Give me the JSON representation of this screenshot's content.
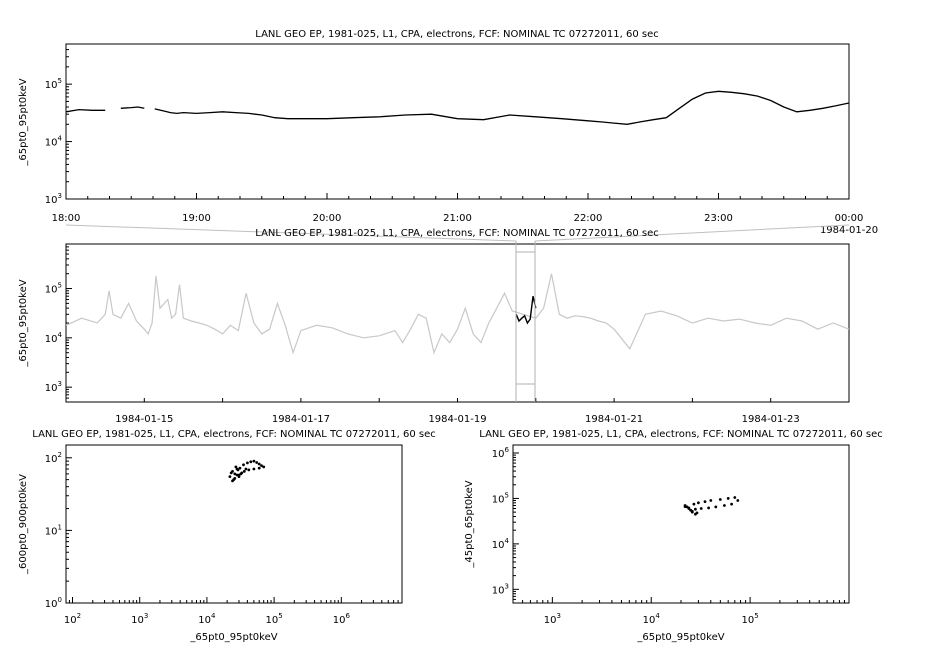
{
  "panels": {
    "top": {
      "title": "LANL GEO EP, 1981-025, L1, CPA, electrons, FCF: NOMINAL TC 07272011, 60 sec",
      "ylabel": "_65pt0_95pt0keV",
      "xticks": [
        "18:00",
        "19:00",
        "20:00",
        "21:00",
        "22:00",
        "23:00",
        "00:00"
      ],
      "xtick_extra": "1984-01-20",
      "yticks": [
        {
          "base": "10",
          "exp": "3"
        },
        {
          "base": "10",
          "exp": "4"
        },
        {
          "base": "10",
          "exp": "5"
        }
      ]
    },
    "middle": {
      "title": "LANL GEO EP, 1981-025, L1, CPA, electrons, FCF: NOMINAL TC 07272011, 60 sec",
      "ylabel": "_65pt0_95pt0keV",
      "xticks": [
        "1984-01-15",
        "1984-01-17",
        "1984-01-19",
        "1984-01-21",
        "1984-01-23"
      ],
      "yticks": [
        {
          "base": "10",
          "exp": "3"
        },
        {
          "base": "10",
          "exp": "4"
        },
        {
          "base": "10",
          "exp": "5"
        }
      ]
    },
    "bottom_left": {
      "title": "LANL GEO EP, 1981-025, L1, CPA, electrons, FCF: NOMINAL TC 07272011, 60 sec",
      "ylabel": "_600pt0_900pt0keV",
      "xlabel": "_65pt0_95pt0keV",
      "xticks": [
        {
          "base": "10",
          "exp": "2"
        },
        {
          "base": "10",
          "exp": "3"
        },
        {
          "base": "10",
          "exp": "4"
        },
        {
          "base": "10",
          "exp": "5"
        },
        {
          "base": "10",
          "exp": "6"
        }
      ],
      "yticks": [
        {
          "base": "10",
          "exp": "0"
        },
        {
          "base": "10",
          "exp": "1"
        },
        {
          "base": "10",
          "exp": "2"
        }
      ]
    },
    "bottom_right": {
      "title": "LANL GEO EP, 1981-025, L1, CPA, electrons, FCF: NOMINAL TC 07272011, 60 sec",
      "ylabel": "_45pt0_65pt0keV",
      "xlabel": "_65pt0_95pt0keV",
      "xticks": [
        {
          "base": "10",
          "exp": "3"
        },
        {
          "base": "10",
          "exp": "4"
        },
        {
          "base": "10",
          "exp": "5"
        }
      ],
      "yticks": [
        {
          "base": "10",
          "exp": "3"
        },
        {
          "base": "10",
          "exp": "4"
        },
        {
          "base": "10",
          "exp": "5"
        },
        {
          "base": "10",
          "exp": "6"
        }
      ]
    }
  },
  "chart_data": [
    {
      "type": "line",
      "panel": "top",
      "x_unit": "hours from 1984-01-19 18:00",
      "xlim": [
        0,
        6
      ],
      "ylim": [
        1000,
        500000
      ],
      "yscale": "log",
      "color": "#000000",
      "x": [
        0.0,
        0.1,
        0.2,
        0.3,
        0.35,
        0.42,
        0.5,
        0.55,
        0.6,
        0.65,
        0.68,
        0.75,
        0.8,
        0.85,
        0.9,
        1.0,
        1.1,
        1.2,
        1.3,
        1.4,
        1.5,
        1.6,
        1.7,
        1.8,
        1.9,
        2.0,
        2.2,
        2.4,
        2.6,
        2.8,
        3.0,
        3.2,
        3.4,
        3.6,
        3.8,
        4.0,
        4.1,
        4.2,
        4.3,
        4.4,
        4.5,
        4.6,
        4.7,
        4.8,
        4.9,
        5.0,
        5.1,
        5.2,
        5.3,
        5.4,
        5.5,
        5.6,
        5.7,
        5.8,
        5.9,
        6.0
      ],
      "y": [
        33000,
        36000,
        35000,
        35000,
        null,
        38000,
        39000,
        40000,
        38000,
        null,
        37000,
        34000,
        32000,
        31000,
        32000,
        31000,
        32000,
        33000,
        32000,
        31000,
        29000,
        26000,
        25000,
        25000,
        25000,
        25000,
        26000,
        27000,
        29000,
        30000,
        25000,
        24000,
        29000,
        27000,
        25000,
        23000,
        22000,
        21000,
        20000,
        22000,
        24000,
        26000,
        38000,
        55000,
        70000,
        75000,
        72000,
        68000,
        62000,
        52000,
        40000,
        33000,
        35000,
        38000,
        42000,
        47000
      ]
    },
    {
      "type": "line",
      "panel": "middle",
      "x_unit": "days from 1984-01-14 00:00",
      "xlim": [
        0,
        10
      ],
      "ylim": [
        500,
        800000
      ],
      "yscale": "log",
      "highlight": {
        "x_range": [
          5.75,
          6.0
        ],
        "color": "#000000",
        "y": [
          30000,
          22000,
          25000,
          28000,
          20000,
          24000,
          70000,
          40000
        ]
      },
      "color": "#c8c8c8",
      "x": [
        0.0,
        0.2,
        0.4,
        0.5,
        0.55,
        0.6,
        0.7,
        0.8,
        0.9,
        1.0,
        1.05,
        1.1,
        1.15,
        1.2,
        1.3,
        1.35,
        1.4,
        1.45,
        1.5,
        1.6,
        1.7,
        1.8,
        1.9,
        2.0,
        2.1,
        2.2,
        2.3,
        2.4,
        2.5,
        2.6,
        2.7,
        2.8,
        2.9,
        3.0,
        3.2,
        3.4,
        3.6,
        3.8,
        4.0,
        4.2,
        4.3,
        4.4,
        4.5,
        4.6,
        4.7,
        4.8,
        4.9,
        5.0,
        5.1,
        5.2,
        5.3,
        5.4,
        5.5,
        5.6,
        5.7,
        6.0,
        6.1,
        6.2,
        6.3,
        6.4,
        6.5,
        6.6,
        6.7,
        6.8,
        6.9,
        7.0,
        7.2,
        7.4,
        7.6,
        7.8,
        8.0,
        8.2,
        8.4,
        8.6,
        8.8,
        9.0,
        9.2,
        9.4,
        9.6,
        9.8,
        10.0
      ],
      "y": [
        18000,
        25000,
        20000,
        30000,
        90000,
        30000,
        25000,
        50000,
        22000,
        15000,
        12000,
        20000,
        180000,
        40000,
        60000,
        25000,
        30000,
        120000,
        25000,
        22000,
        20000,
        18000,
        15000,
        12000,
        18000,
        14000,
        80000,
        20000,
        12000,
        15000,
        50000,
        18000,
        5000,
        14000,
        18000,
        16000,
        12000,
        10000,
        11000,
        14000,
        8000,
        15000,
        30000,
        25000,
        5000,
        12000,
        8000,
        15000,
        40000,
        12000,
        8000,
        20000,
        40000,
        80000,
        35000,
        25000,
        40000,
        200000,
        30000,
        25000,
        28000,
        27000,
        25000,
        22000,
        20000,
        15000,
        6000,
        30000,
        35000,
        28000,
        20000,
        25000,
        22000,
        24000,
        20000,
        18000,
        25000,
        22000,
        15000,
        20000,
        15000
      ]
    },
    {
      "type": "scatter",
      "panel": "bottom_left",
      "xscale": "log",
      "yscale": "log",
      "xlim": [
        80,
        8000000
      ],
      "ylim": [
        1,
        150
      ],
      "xlabel": "_65pt0_95pt0keV",
      "ylabel": "_600pt0_900pt0keV",
      "x": [
        22000,
        24000,
        26000,
        28000,
        30000,
        25000,
        27000,
        23000,
        29000,
        31000,
        35000,
        40000,
        45000,
        50000,
        55000,
        60000,
        65000,
        70000,
        60000,
        50000,
        42000,
        36000,
        32000,
        28000,
        26000,
        24000,
        30000,
        33000,
        38000
      ],
      "y": [
        55,
        65,
        60,
        70,
        58,
        50,
        75,
        62,
        68,
        72,
        80,
        85,
        88,
        90,
        86,
        82,
        78,
        75,
        72,
        70,
        68,
        65,
        60,
        58,
        52,
        48,
        55,
        62,
        70
      ]
    },
    {
      "type": "scatter",
      "panel": "bottom_right",
      "xscale": "log",
      "yscale": "log",
      "xlim": [
        400,
        1000000
      ],
      "ylim": [
        500,
        1500000
      ],
      "xlabel": "_65pt0_95pt0keV",
      "ylabel": "_45pt0_65pt0keV",
      "x": [
        22000,
        24000,
        26000,
        28000,
        25000,
        23000,
        27000,
        30000,
        35000,
        40000,
        50000,
        60000,
        70000,
        75000,
        65000,
        55000,
        45000,
        38000,
        32000,
        28000,
        24000,
        22000,
        26000,
        29000
      ],
      "y": [
        70000,
        60000,
        50000,
        45000,
        55000,
        65000,
        75000,
        80000,
        85000,
        90000,
        95000,
        100000,
        105000,
        90000,
        75000,
        70000,
        65000,
        62000,
        60000,
        58000,
        62000,
        66000,
        52000,
        48000
      ]
    }
  ]
}
